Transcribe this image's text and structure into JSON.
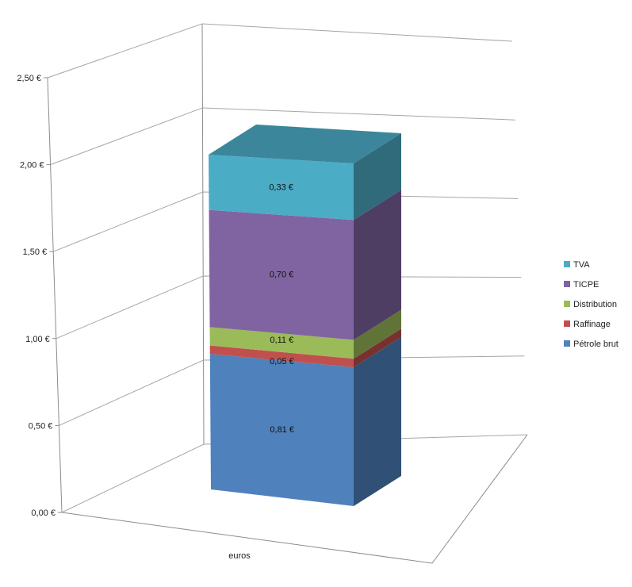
{
  "chart_data": {
    "type": "bar",
    "subtype": "3d-stacked-column",
    "categories": [
      "euros"
    ],
    "series": [
      {
        "name": "Pétrole brut",
        "values": [
          0.81
        ],
        "label": "0,81 €",
        "color": "#4f81bd"
      },
      {
        "name": "Raffinage",
        "values": [
          0.05
        ],
        "label": "0,05 €",
        "color": "#c0504d"
      },
      {
        "name": "Distribution",
        "values": [
          0.11
        ],
        "label": "0,11 €",
        "color": "#9bbb59"
      },
      {
        "name": "TICPE",
        "values": [
          0.7
        ],
        "label": "0,70 €",
        "color": "#8064a2"
      },
      {
        "name": "TVA",
        "values": [
          0.33
        ],
        "label": "0,33 €",
        "color": "#4bacc6"
      }
    ],
    "legend_order": [
      "TVA",
      "TICPE",
      "Distribution",
      "Raffinage",
      "Pétrole brut"
    ],
    "y_ticks": [
      {
        "value": 0.0,
        "label": "0,00 €"
      },
      {
        "value": 0.5,
        "label": "0,50 €"
      },
      {
        "value": 1.0,
        "label": "1,00 €"
      },
      {
        "value": 1.5,
        "label": "1,50 €"
      },
      {
        "value": 2.0,
        "label": "2,00 €"
      },
      {
        "value": 2.5,
        "label": "2,50 €"
      }
    ],
    "ylim": [
      0,
      2.5
    ],
    "grid": true,
    "legend_position": "right",
    "title": "",
    "xlabel": "",
    "ylabel": ""
  }
}
